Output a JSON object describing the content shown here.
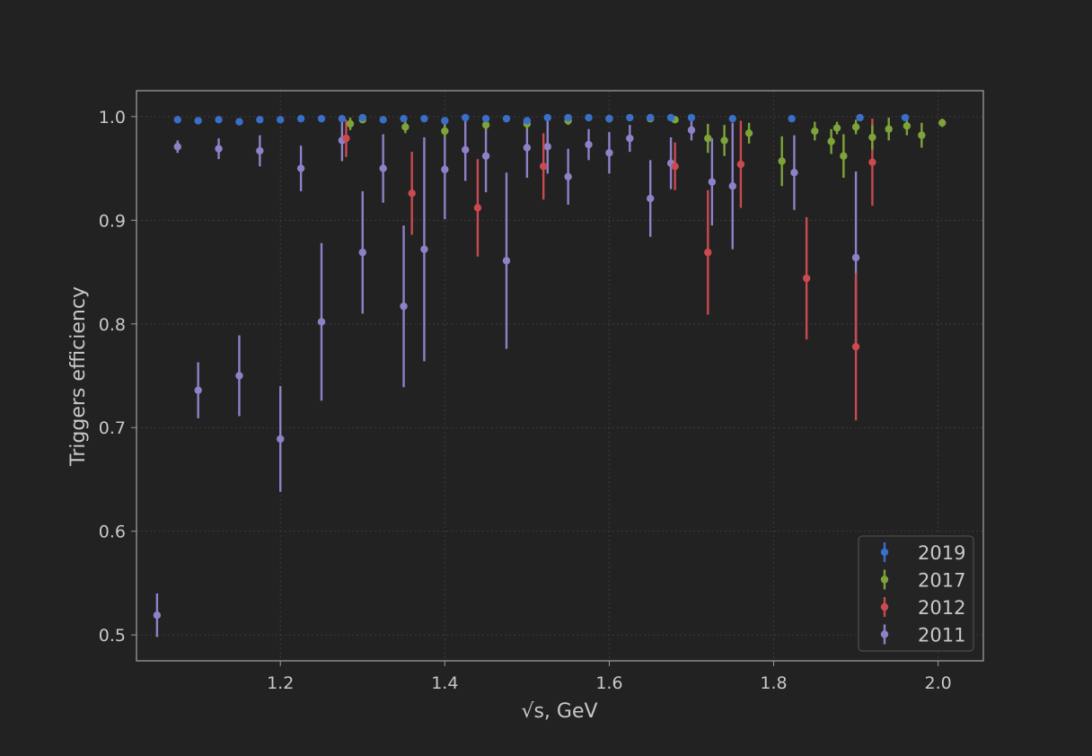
{
  "chart_data": {
    "type": "scatter",
    "xlabel": "√s, GeV",
    "ylabel": "Triggers efficiency",
    "xlim": [
      1.025,
      2.055
    ],
    "ylim": [
      0.475,
      1.025
    ],
    "xticks": [
      1.2,
      1.4,
      1.6,
      1.8,
      2.0
    ],
    "xtick_labels": [
      "1.2",
      "1.4",
      "1.6",
      "1.8",
      "2.0"
    ],
    "yticks": [
      0.5,
      0.6,
      0.7,
      0.8,
      0.9,
      1.0
    ],
    "ytick_labels": [
      "0.5",
      "0.6",
      "0.7",
      "0.8",
      "0.9",
      "1.0"
    ],
    "grid": true,
    "legend_position": "lower-right",
    "series": [
      {
        "name": "2019",
        "color": "#3a6fc9",
        "points": [
          {
            "x": 1.075,
            "y": 0.997,
            "err": 0.002
          },
          {
            "x": 1.1,
            "y": 0.996,
            "err": 0.003
          },
          {
            "x": 1.125,
            "y": 0.997,
            "err": 0.002
          },
          {
            "x": 1.15,
            "y": 0.995,
            "err": 0.003
          },
          {
            "x": 1.175,
            "y": 0.997,
            "err": 0.002
          },
          {
            "x": 1.2,
            "y": 0.997,
            "err": 0.002
          },
          {
            "x": 1.225,
            "y": 0.998,
            "err": 0.002
          },
          {
            "x": 1.25,
            "y": 0.998,
            "err": 0.002
          },
          {
            "x": 1.275,
            "y": 0.998,
            "err": 0.002
          },
          {
            "x": 1.3,
            "y": 0.999,
            "err": 0.002
          },
          {
            "x": 1.325,
            "y": 0.997,
            "err": 0.002
          },
          {
            "x": 1.35,
            "y": 0.998,
            "err": 0.002
          },
          {
            "x": 1.375,
            "y": 0.998,
            "err": 0.002
          },
          {
            "x": 1.4,
            "y": 0.996,
            "err": 0.003
          },
          {
            "x": 1.425,
            "y": 0.999,
            "err": 0.002
          },
          {
            "x": 1.45,
            "y": 0.998,
            "err": 0.002
          },
          {
            "x": 1.475,
            "y": 0.998,
            "err": 0.002
          },
          {
            "x": 1.5,
            "y": 0.996,
            "err": 0.003
          },
          {
            "x": 1.525,
            "y": 0.999,
            "err": 0.002
          },
          {
            "x": 1.55,
            "y": 0.999,
            "err": 0.002
          },
          {
            "x": 1.575,
            "y": 0.999,
            "err": 0.002
          },
          {
            "x": 1.6,
            "y": 0.998,
            "err": 0.002
          },
          {
            "x": 1.625,
            "y": 0.999,
            "err": 0.002
          },
          {
            "x": 1.65,
            "y": 0.999,
            "err": 0.002
          },
          {
            "x": 1.675,
            "y": 0.999,
            "err": 0.002
          },
          {
            "x": 1.7,
            "y": 0.999,
            "err": 0.002
          },
          {
            "x": 1.75,
            "y": 0.998,
            "err": 0.002
          },
          {
            "x": 1.822,
            "y": 0.998,
            "err": 0.002
          },
          {
            "x": 1.905,
            "y": 0.999,
            "err": 0.002
          },
          {
            "x": 1.96,
            "y": 0.999,
            "err": 0.002
          }
        ]
      },
      {
        "name": "2017",
        "color": "#7ea33a",
        "points": [
          {
            "x": 1.285,
            "y": 0.993,
            "err": 0.006
          },
          {
            "x": 1.3,
            "y": 0.997,
            "err": 0.003
          },
          {
            "x": 1.352,
            "y": 0.99,
            "err": 0.006
          },
          {
            "x": 1.4,
            "y": 0.986,
            "err": 0.006
          },
          {
            "x": 1.45,
            "y": 0.992,
            "err": 0.005
          },
          {
            "x": 1.5,
            "y": 0.993,
            "err": 0.005
          },
          {
            "x": 1.55,
            "y": 0.996,
            "err": 0.004
          },
          {
            "x": 1.6,
            "y": 0.998,
            "err": 0.003
          },
          {
            "x": 1.65,
            "y": 0.998,
            "err": 0.003
          },
          {
            "x": 1.68,
            "y": 0.997,
            "err": 0.003
          },
          {
            "x": 1.72,
            "y": 0.979,
            "err": 0.014
          },
          {
            "x": 1.74,
            "y": 0.977,
            "err": 0.015
          },
          {
            "x": 1.77,
            "y": 0.984,
            "err": 0.01
          },
          {
            "x": 1.81,
            "y": 0.957,
            "err": 0.024
          },
          {
            "x": 1.85,
            "y": 0.986,
            "err": 0.009
          },
          {
            "x": 1.87,
            "y": 0.976,
            "err": 0.012
          },
          {
            "x": 1.877,
            "y": 0.989,
            "err": 0.006
          },
          {
            "x": 1.885,
            "y": 0.962,
            "err": 0.021
          },
          {
            "x": 1.9,
            "y": 0.99,
            "err": 0.007
          },
          {
            "x": 1.92,
            "y": 0.98,
            "err": 0.012
          },
          {
            "x": 1.94,
            "y": 0.988,
            "err": 0.011
          },
          {
            "x": 1.962,
            "y": 0.991,
            "err": 0.009
          },
          {
            "x": 1.98,
            "y": 0.982,
            "err": 0.012
          },
          {
            "x": 2.005,
            "y": 0.994,
            "err": 0.004
          }
        ]
      },
      {
        "name": "2012",
        "color": "#c94a4f",
        "points": [
          {
            "x": 1.28,
            "y": 0.979,
            "err": 0.018
          },
          {
            "x": 1.36,
            "y": 0.926,
            "err": 0.04
          },
          {
            "x": 1.44,
            "y": 0.912,
            "err": 0.047
          },
          {
            "x": 1.52,
            "y": 0.952,
            "err": 0.032
          },
          {
            "x": 1.68,
            "y": 0.952,
            "err": 0.023
          },
          {
            "x": 1.72,
            "y": 0.869,
            "err": 0.06
          },
          {
            "x": 1.76,
            "y": 0.954,
            "err": 0.042
          },
          {
            "x": 1.84,
            "y": 0.844,
            "err": 0.059
          },
          {
            "x": 1.9,
            "y": 0.778,
            "err": 0.071
          },
          {
            "x": 1.92,
            "y": 0.956,
            "err": 0.042
          }
        ]
      },
      {
        "name": "2011",
        "color": "#8f81c8",
        "points": [
          {
            "x": 1.05,
            "y": 0.519,
            "err": 0.021
          },
          {
            "x": 1.075,
            "y": 0.971,
            "err": 0.006
          },
          {
            "x": 1.1,
            "y": 0.736,
            "err": 0.027
          },
          {
            "x": 1.125,
            "y": 0.969,
            "err": 0.01
          },
          {
            "x": 1.15,
            "y": 0.75,
            "err": 0.039
          },
          {
            "x": 1.175,
            "y": 0.967,
            "err": 0.015
          },
          {
            "x": 1.2,
            "y": 0.689,
            "err": 0.051
          },
          {
            "x": 1.225,
            "y": 0.95,
            "err": 0.022
          },
          {
            "x": 1.25,
            "y": 0.802,
            "err": 0.076
          },
          {
            "x": 1.275,
            "y": 0.977,
            "err": 0.02
          },
          {
            "x": 1.3,
            "y": 0.869,
            "err": 0.059
          },
          {
            "x": 1.325,
            "y": 0.95,
            "err": 0.033
          },
          {
            "x": 1.35,
            "y": 0.817,
            "err": 0.078
          },
          {
            "x": 1.375,
            "y": 0.872,
            "err": 0.108
          },
          {
            "x": 1.4,
            "y": 0.949,
            "err": 0.048
          },
          {
            "x": 1.425,
            "y": 0.968,
            "err": 0.03
          },
          {
            "x": 1.45,
            "y": 0.962,
            "err": 0.035
          },
          {
            "x": 1.475,
            "y": 0.861,
            "err": 0.085
          },
          {
            "x": 1.5,
            "y": 0.97,
            "err": 0.029
          },
          {
            "x": 1.525,
            "y": 0.971,
            "err": 0.026
          },
          {
            "x": 1.55,
            "y": 0.942,
            "err": 0.027
          },
          {
            "x": 1.575,
            "y": 0.973,
            "err": 0.015
          },
          {
            "x": 1.6,
            "y": 0.965,
            "err": 0.02
          },
          {
            "x": 1.625,
            "y": 0.979,
            "err": 0.013
          },
          {
            "x": 1.65,
            "y": 0.921,
            "err": 0.037
          },
          {
            "x": 1.675,
            "y": 0.955,
            "err": 0.025
          },
          {
            "x": 1.7,
            "y": 0.987,
            "err": 0.01
          },
          {
            "x": 1.725,
            "y": 0.937,
            "err": 0.042
          },
          {
            "x": 1.75,
            "y": 0.933,
            "err": 0.061
          },
          {
            "x": 1.825,
            "y": 0.946,
            "err": 0.036
          },
          {
            "x": 1.9,
            "y": 0.864,
            "err": 0.083
          }
        ]
      }
    ]
  }
}
